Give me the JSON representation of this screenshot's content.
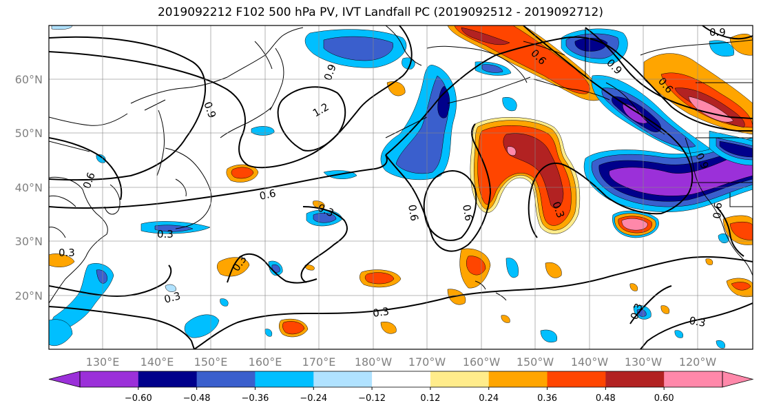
{
  "title": "2019092212 F102 500 hPa PV, IVT Landfall PC (2019092512 - 2019092712)",
  "lat_labels": [
    "60°N",
    "50°N",
    "40°N",
    "30°N",
    "20°N"
  ],
  "lon_labels": [
    "130°E",
    "140°E",
    "150°E",
    "160°E",
    "170°E",
    "180°W",
    "170°W",
    "160°W",
    "150°W",
    "140°W",
    "130°W",
    "120°W"
  ],
  "colorbar": {
    "colors": [
      "#9b30d9",
      "#00008b",
      "#3a5fcd",
      "#00bfff",
      "#b0e2ff",
      "#ffffff",
      "#ffec8b",
      "#ffa500",
      "#ff4500",
      "#b22222",
      "#ff88aa"
    ],
    "tick_labels": [
      "−0.60",
      "−0.48",
      "−0.36",
      "−0.24",
      "−0.12",
      "0.12",
      "0.24",
      "0.36",
      "0.48",
      "0.60"
    ]
  },
  "contour_labels": {
    "c1": "0.9",
    "c2": "0.9",
    "c3": "1.2",
    "c4": "0.6",
    "c5": "0.3",
    "c6": "0.6",
    "c7": "0.3",
    "c8": "0.3",
    "c9": "0.3",
    "c10": "0.3",
    "c11": "0.6",
    "c12": "0.6",
    "c13": "0.3",
    "c14": "0.3",
    "c15": "0.3",
    "c16": "0.6",
    "c17": "0.9",
    "c18": "0.6",
    "c19": "0.9",
    "c20": "0.9",
    "c21": "0.6",
    "c22": "0.3"
  }
}
